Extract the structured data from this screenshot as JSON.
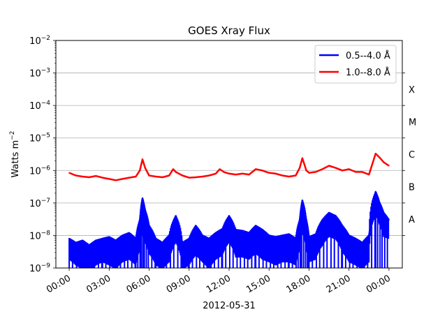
{
  "chart_data": {
    "type": "line",
    "title": "GOES Xray Flux",
    "xlabel": "2012-05-31",
    "ylabel": "Watts m",
    "ylabel_superscript": "−2",
    "yscale": "log",
    "ylim": [
      1e-09,
      0.01
    ],
    "xlim_hours": [
      -1,
      25
    ],
    "grid": "horizontal",
    "legend_position": "top-right",
    "x_ticks": [
      {
        "hour": 0,
        "label": "00:00"
      },
      {
        "hour": 3,
        "label": "03:00"
      },
      {
        "hour": 6,
        "label": "06:00"
      },
      {
        "hour": 9,
        "label": "09:00"
      },
      {
        "hour": 12,
        "label": "12:00"
      },
      {
        "hour": 15,
        "label": "15:00"
      },
      {
        "hour": 18,
        "label": "18:00"
      },
      {
        "hour": 21,
        "label": "21:00"
      },
      {
        "hour": 24,
        "label": "00:00"
      }
    ],
    "y_ticks": [
      {
        "exp": -9,
        "base": "10",
        "sup": "−9"
      },
      {
        "exp": -8,
        "base": "10",
        "sup": "−8"
      },
      {
        "exp": -7,
        "base": "10",
        "sup": "−7"
      },
      {
        "exp": -6,
        "base": "10",
        "sup": "−6"
      },
      {
        "exp": -5,
        "base": "10",
        "sup": "−5"
      },
      {
        "exp": -4,
        "base": "10",
        "sup": "−4"
      },
      {
        "exp": -3,
        "base": "10",
        "sup": "−3"
      },
      {
        "exp": -2,
        "base": "10",
        "sup": "−2"
      }
    ],
    "flare_classes": [
      {
        "label": "A",
        "exp": -7.5
      },
      {
        "label": "B",
        "exp": -6.5
      },
      {
        "label": "C",
        "exp": -5.5
      },
      {
        "label": "M",
        "exp": -4.5
      },
      {
        "label": "X",
        "exp": -3.5
      }
    ],
    "series": [
      {
        "name": "0.5--4.0 Å",
        "color": "#0000ff",
        "hours": [
          0,
          0.5,
          1,
          1.5,
          2,
          2.5,
          3,
          3.5,
          4,
          4.5,
          5,
          5.3,
          5.5,
          5.7,
          6,
          6.5,
          7,
          7.5,
          8,
          8.5,
          9,
          9.5,
          10,
          10.5,
          11,
          11.5,
          12,
          12.5,
          13,
          13.5,
          14,
          14.5,
          15,
          15.5,
          16,
          16.5,
          17,
          17.3,
          17.5,
          17.8,
          18,
          18.5,
          19,
          19.5,
          20,
          20.5,
          21,
          21.5,
          22,
          22.5,
          23,
          23.3,
          23.6,
          24
        ],
        "values": [
          8e-09,
          6e-09,
          7e-09,
          5e-09,
          7e-09,
          8e-09,
          9e-09,
          7e-09,
          1e-08,
          1.2e-08,
          8e-09,
          3e-08,
          1.4e-07,
          6e-08,
          2e-08,
          8e-09,
          6e-09,
          1e-08,
          4e-08,
          6e-09,
          8e-09,
          2e-08,
          1e-08,
          8e-09,
          1.2e-08,
          1.6e-08,
          4e-08,
          1.5e-08,
          1.4e-08,
          1.2e-08,
          2e-08,
          1.5e-08,
          1e-08,
          9e-09,
          1e-08,
          1.1e-08,
          8e-09,
          3e-08,
          1.2e-07,
          3e-08,
          9e-09,
          1.1e-08,
          3e-08,
          5e-08,
          4e-08,
          2e-08,
          1e-08,
          8e-09,
          6e-09,
          1e-08,
          2.2e-07,
          1e-07,
          5e-08,
          3e-08
        ],
        "noise_floor": [
          6e-09,
          4e-09,
          3e-09,
          2e-09,
          4e-09,
          5e-09,
          4e-09,
          3e-09,
          5e-09,
          6e-09,
          4e-09,
          1.2e-08,
          4e-08,
          2e-08,
          9e-09,
          4e-09,
          3e-09,
          5e-09,
          2e-08,
          3e-09,
          4e-09,
          8e-09,
          5e-09,
          3e-09,
          6e-09,
          8e-09,
          2e-08,
          7e-09,
          7e-09,
          6e-09,
          9e-09,
          6e-09,
          5e-09,
          4e-09,
          5e-09,
          5e-09,
          4e-09,
          1.2e-08,
          4e-08,
          1.2e-08,
          5e-09,
          6e-09,
          1.6e-08,
          3e-08,
          2.5e-08,
          1e-08,
          5e-09,
          4e-09,
          3e-09,
          5e-09,
          1.4e-07,
          7e-08,
          3e-08,
          2.6e-08
        ]
      },
      {
        "name": "1.0--8.0 Å",
        "color": "#ff0000",
        "hours": [
          0,
          0.5,
          1,
          1.5,
          2,
          2.5,
          3,
          3.5,
          4,
          4.5,
          5,
          5.3,
          5.5,
          5.7,
          6,
          6.5,
          7,
          7.5,
          7.8,
          8,
          8.5,
          9,
          9.5,
          10,
          10.5,
          11,
          11.3,
          11.6,
          12,
          12.5,
          13,
          13.5,
          14,
          14.5,
          14.8,
          15,
          15.5,
          16,
          16.5,
          17,
          17.3,
          17.5,
          17.8,
          18,
          18.5,
          19,
          19.5,
          20,
          20.5,
          21,
          21.5,
          22,
          22.5,
          23,
          23.3,
          23.6,
          24
        ],
        "values": [
          8.5e-07,
          7e-07,
          6.5e-07,
          6.2e-07,
          6.8e-07,
          6e-07,
          5.5e-07,
          5e-07,
          5.5e-07,
          6e-07,
          6.5e-07,
          1e-06,
          2.2e-06,
          1.2e-06,
          7e-07,
          6.5e-07,
          6.2e-07,
          7e-07,
          1.1e-06,
          9e-07,
          7e-07,
          6e-07,
          6.2e-07,
          6.5e-07,
          7e-07,
          8e-07,
          1.1e-06,
          9e-07,
          8e-07,
          7.5e-07,
          8e-07,
          7.5e-07,
          1.1e-06,
          1e-06,
          9e-07,
          8.5e-07,
          8e-07,
          7e-07,
          6.5e-07,
          7e-07,
          1.2e-06,
          2.4e-06,
          1e-06,
          8.5e-07,
          9e-07,
          1.1e-06,
          1.4e-06,
          1.2e-06,
          1e-06,
          1.1e-06,
          9e-07,
          9e-07,
          7.5e-07,
          3.3e-06,
          2.5e-06,
          1.8e-06,
          1.4e-06
        ]
      }
    ]
  }
}
